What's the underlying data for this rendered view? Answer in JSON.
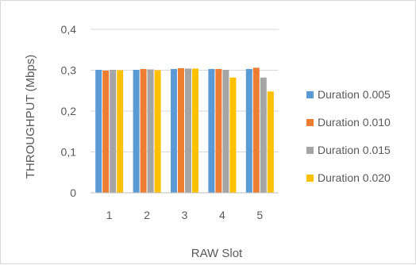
{
  "chart_data": {
    "type": "bar",
    "title": "",
    "xlabel": "RAW Slot",
    "ylabel": "THROUGHPUT (Mbps)",
    "categories": [
      "1",
      "2",
      "3",
      "4",
      "5"
    ],
    "ylim": [
      0,
      0.4
    ],
    "yticks": [
      0,
      0.1,
      0.2,
      0.3,
      0.4
    ],
    "ytick_labels": [
      "0",
      "0,1",
      "0,2",
      "0,3",
      "0,4"
    ],
    "grid": "horizontal",
    "legend_position": "right",
    "series": [
      {
        "name": "Duration 0.005",
        "color": "#5B9BD5",
        "values": [
          0.301,
          0.301,
          0.303,
          0.303,
          0.303
        ]
      },
      {
        "name": "Duration 0.010",
        "color": "#ED7D31",
        "values": [
          0.299,
          0.303,
          0.305,
          0.303,
          0.306
        ]
      },
      {
        "name": "Duration 0.015",
        "color": "#A5A5A5",
        "values": [
          0.301,
          0.302,
          0.304,
          0.301,
          0.282
        ]
      },
      {
        "name": "Duration 0.020",
        "color": "#FFC000",
        "values": [
          0.3,
          0.3,
          0.304,
          0.282,
          0.248
        ]
      }
    ]
  }
}
